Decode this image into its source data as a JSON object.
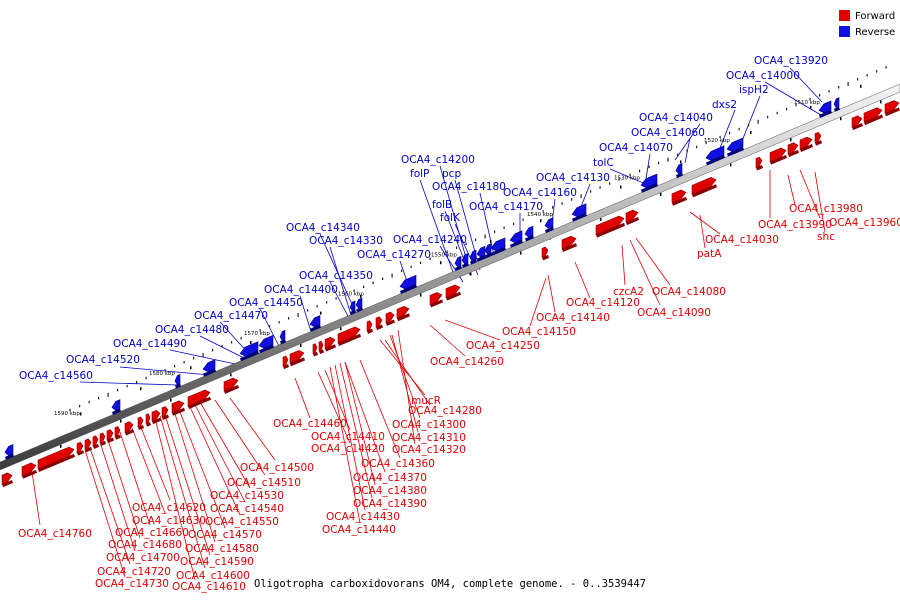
{
  "legend": {
    "forward_label": "Forward",
    "reverse_label": "Reverse",
    "forward_color": "#e00000",
    "reverse_color": "#1010e0"
  },
  "caption": "Oligotropha carboxidovorans OM4, complete genome. - 0..3539447",
  "scale_ticks": [
    "1510 kbp",
    "1520 kbp",
    "1530 kbp",
    "1540 kbp",
    "1550 kbp",
    "1560 kbp",
    "1570 kbp",
    "1580 kbp",
    "1590 kbp"
  ],
  "forward_labels": [
    "OCA4_c13960",
    "OCA4_c13980",
    "OCA4_c13990",
    "shc",
    "OCA4_c14030",
    "patA",
    "OCA4_c14080",
    "OCA4_c14090",
    "czcA2",
    "OCA4_c14120",
    "OCA4_c14140",
    "OCA4_c14150",
    "OCA4_c14250",
    "OCA4_c14260",
    "mucR",
    "OCA4_c14280",
    "OCA4_c14300",
    "OCA4_c14310",
    "OCA4_c14320",
    "OCA4_c14360",
    "OCA4_c14370",
    "OCA4_c14380",
    "OCA4_c14390",
    "OCA4_c14410",
    "OCA4_c14420",
    "OCA4_c14430",
    "OCA4_c14440",
    "OCA4_c14460",
    "OCA4_c14500",
    "OCA4_c14510",
    "OCA4_c14530",
    "OCA4_c14540",
    "OCA4_c14550",
    "OCA4_c14570",
    "OCA4_c14580",
    "OCA4_c14590",
    "OCA4_c14600",
    "OCA4_c14610",
    "OCA4_c14620",
    "OCA4_c14630",
    "OCA4_c14660",
    "OCA4_c14680",
    "OCA4_c14700",
    "OCA4_c14720",
    "OCA4_c14730",
    "OCA4_c14760"
  ],
  "reverse_labels": [
    "OCA4_c13920",
    "OCA4_c14000",
    "ispH2",
    "dxs2",
    "OCA4_c14040",
    "OCA4_c14060",
    "OCA4_c14070",
    "tolC",
    "OCA4_c14130",
    "OCA4_c14160",
    "OCA4_c14170",
    "OCA4_c14180",
    "OCA4_c14200",
    "folP",
    "pcp",
    "folB",
    "folK",
    "OCA4_c14240",
    "OCA4_c14270",
    "OCA4_c14340",
    "OCA4_c14330",
    "OCA4_c14350",
    "OCA4_c14400",
    "OCA4_c14450",
    "OCA4_c14470",
    "OCA4_c14480",
    "OCA4_c14490",
    "OCA4_c14520",
    "OCA4_c14560"
  ]
}
